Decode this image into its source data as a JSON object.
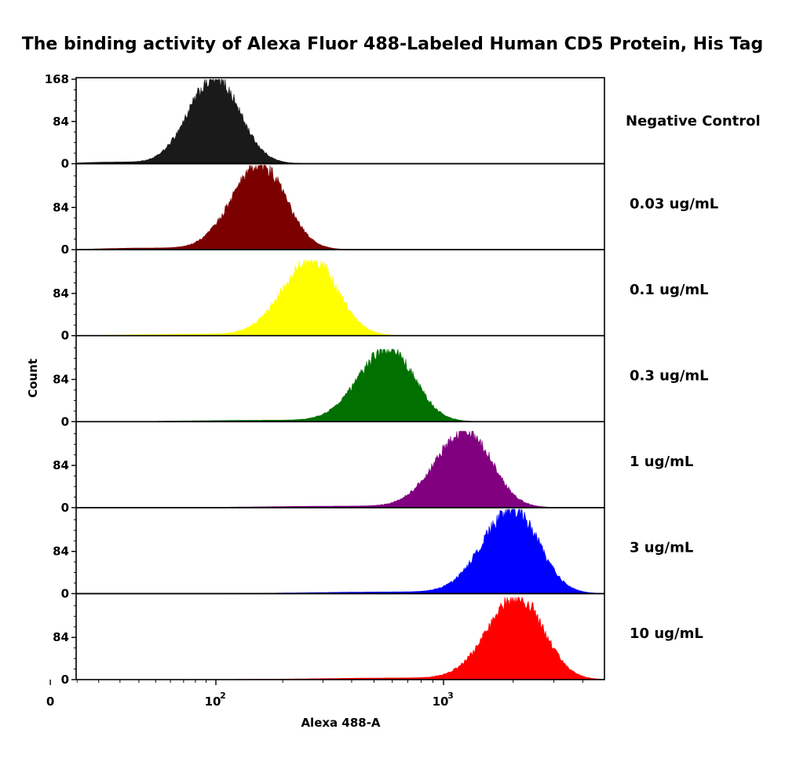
{
  "chart_data": {
    "type": "area",
    "title": "The binding activity of Alexa Fluor 488-Labeled Human CD5 Protein, His Tag",
    "xlabel": "Alexa 488-A",
    "ylabel": "Count",
    "x_scale": "biexponential",
    "x_tick_labels": [
      {
        "value": 0,
        "label": "0"
      },
      {
        "value": 100,
        "label": "10",
        "exp": "2"
      },
      {
        "value": 1000,
        "label": "10",
        "exp": "3"
      }
    ],
    "ylim": [
      0,
      168
    ],
    "y_ticks": [
      0,
      84,
      168
    ],
    "series": [
      {
        "name": "Negative Control",
        "color": "#1a1a1a",
        "peak_x": 100,
        "peak_count": 168
      },
      {
        "name": "0.03 ug/mL",
        "color": "#7b0000",
        "peak_x": 160,
        "peak_count": 168
      },
      {
        "name": "0.1 ug/mL",
        "color": "#ffff00",
        "peak_x": 270,
        "peak_count": 150
      },
      {
        "name": "0.3 ug/mL",
        "color": "#007000",
        "peak_x": 580,
        "peak_count": 144
      },
      {
        "name": "1 ug/mL",
        "color": "#800080",
        "peak_x": 1250,
        "peak_count": 152
      },
      {
        "name": "3 ug/mL",
        "color": "#0000ff",
        "peak_x": 2000,
        "peak_count": 168
      },
      {
        "name": "10 ug/mL",
        "color": "#ff0000",
        "peak_x": 2100,
        "peak_count": 164
      }
    ],
    "legend": "right"
  }
}
